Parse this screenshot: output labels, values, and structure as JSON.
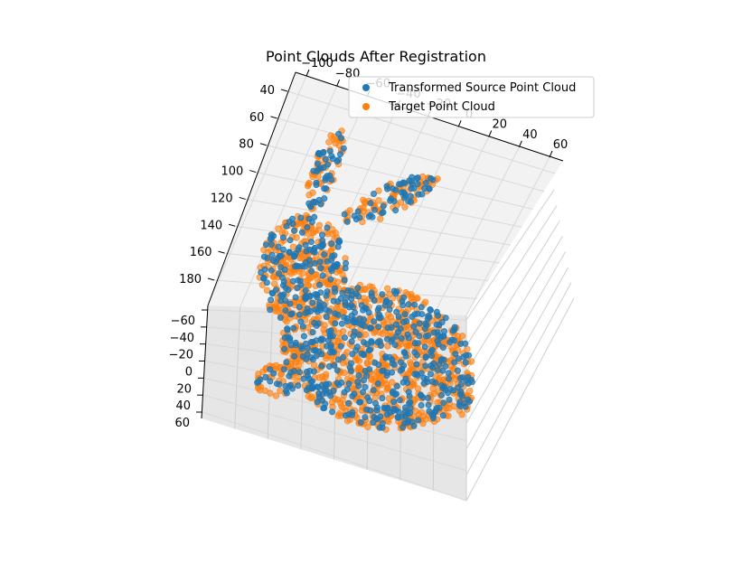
{
  "chart_data": {
    "type": "scatter",
    "projection": "3d",
    "title": "Point Clouds After Registration",
    "legend": {
      "placement": "top-right"
    },
    "grid": true,
    "pane_color": "#f2f2f2",
    "axes": {
      "x": {
        "ticks": [
          "−100",
          "−80",
          "−60",
          "−40",
          "−20",
          "0",
          "20",
          "40",
          "60"
        ],
        "range": [
          -100,
          60
        ]
      },
      "y": {
        "ticks": [
          "−60",
          "−40",
          "−20",
          "0",
          "20",
          "40",
          "60"
        ],
        "range": [
          -60,
          60
        ]
      },
      "z": {
        "ticks": [
          "40",
          "60",
          "80",
          "100",
          "120",
          "140",
          "160",
          "180"
        ],
        "range": [
          40,
          180
        ]
      }
    },
    "series": [
      {
        "name": "Transformed Source Point Cloud",
        "color": "#1f77b4",
        "approx_points": 700
      },
      {
        "name": "Target Point Cloud",
        "color": "#ff7f0e",
        "approx_points": 1100
      }
    ]
  }
}
